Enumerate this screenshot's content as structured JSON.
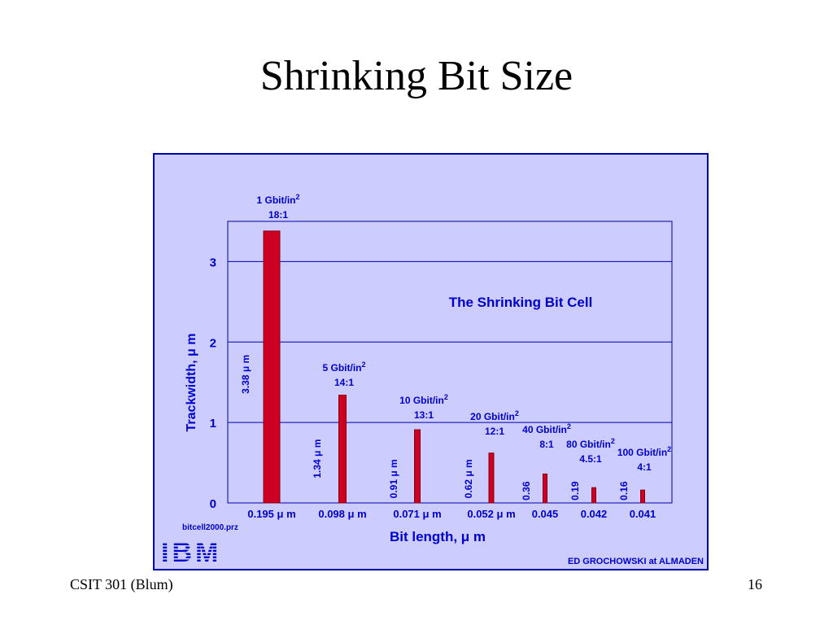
{
  "slide": {
    "title": "Shrinking Bit Size",
    "footer_left": "CSIT 301 (Blum)",
    "page_number": "16"
  },
  "figure": {
    "panel_color": "#ccccff",
    "border_color": "#0000aa",
    "text_color": "#0000cc",
    "bar_color": "#cc0022",
    "source_file": "bitcell2000.prz",
    "logo_text": "IBM",
    "credit": "ED GROCHOWSKI at ALMADEN"
  },
  "chart_data": {
    "type": "bar",
    "title": "The Shrinking Bit Cell",
    "xlabel": "Bit length, μ m",
    "ylabel": "Trackwidth, μ m",
    "ylim": [
      0,
      3.5
    ],
    "yticks": [
      "0",
      "1",
      "2",
      "3"
    ],
    "grid": true,
    "bars": [
      {
        "bit_length": "0.195 μ m",
        "trackwidth": 3.38,
        "value_label": "3.38 μ m",
        "density": "1 Gbit/in",
        "ratio": "18:1"
      },
      {
        "bit_length": "0.098 μ m",
        "trackwidth": 1.34,
        "value_label": "1.34 μ m",
        "density": "5 Gbit/in",
        "ratio": "14:1"
      },
      {
        "bit_length": "0.071 μ m",
        "trackwidth": 0.91,
        "value_label": "0.91 μ m",
        "density": "10 Gbit/in",
        "ratio": "13:1"
      },
      {
        "bit_length": "0.052 μ m",
        "trackwidth": 0.62,
        "value_label": "0.62 μ m",
        "density": "20 Gbit/in",
        "ratio": "12:1"
      },
      {
        "bit_length": "0.045",
        "trackwidth": 0.36,
        "value_label": "0.36",
        "density": "40 Gbit/in",
        "ratio": "8:1"
      },
      {
        "bit_length": "0.042",
        "trackwidth": 0.19,
        "value_label": "0.19",
        "density": "80 Gbit/in",
        "ratio": "4.5:1"
      },
      {
        "bit_length": "0.041",
        "trackwidth": 0.16,
        "value_label": "0.16",
        "density": "100 Gbit/in",
        "ratio": "4:1"
      }
    ],
    "density_superscript": "2"
  }
}
